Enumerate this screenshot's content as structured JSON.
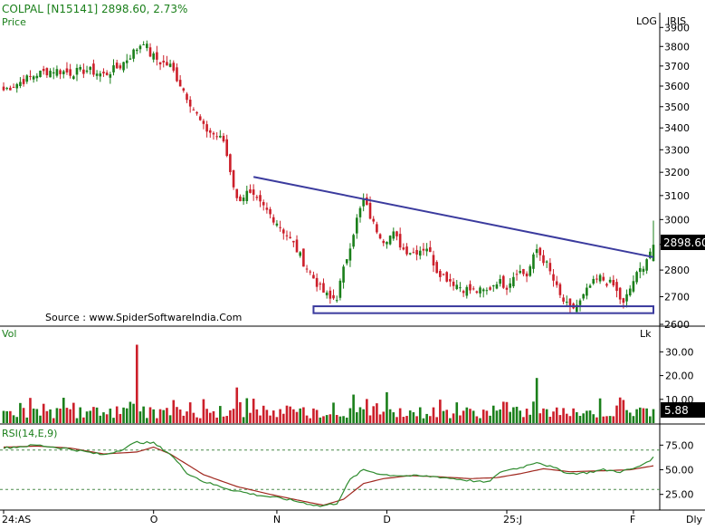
{
  "header": {
    "symbol": "COLPAL [N15141]",
    "last_price": "2898.60,",
    "change_pct": "2.73%",
    "price_label": "Price",
    "log_label": "LOG",
    "provider": "IRIS",
    "source": "Source : www.SpiderSoftwareIndia.Com"
  },
  "price_panel": {
    "y_axis_ticks": [
      "3900",
      "3800",
      "3700",
      "3600",
      "3500",
      "3400",
      "3300",
      "3200",
      "3100",
      "3000",
      "2900",
      "2800",
      "2700",
      "2600"
    ],
    "last_price_tag": "2898.60",
    "resistance_line": {
      "from": [
        75,
        3180
      ],
      "to": [
        195,
        2850
      ]
    },
    "support_zone": [
      2640,
      2665
    ]
  },
  "volume_panel": {
    "label": "Vol",
    "unit": "Lk",
    "y_axis_ticks": [
      "30.00",
      "20.00",
      "10.00"
    ],
    "last_volume_tag": "5.88"
  },
  "rsi_panel": {
    "label": "RSI(14,E,9)",
    "y_axis_ticks": [
      "75.00",
      "50.00",
      "25.00"
    ],
    "overbought": 70,
    "oversold": 30
  },
  "x_axis": {
    "labels": [
      "24:AS",
      "O",
      "N",
      "D",
      "25:J",
      "F"
    ],
    "label_positions": [
      0,
      45,
      82,
      115,
      151,
      189
    ],
    "period_label": "Dly"
  },
  "colors": {
    "up": "#1a7f1a",
    "down": "#cc1f2a",
    "trendline": "#3b3b9e",
    "rsi": "#2e8b2e",
    "rsi_signal": "#a0281f",
    "grid_dash": "#4a8a4a",
    "last_tag_bg": "#000000"
  },
  "chart_data": [
    {
      "type": "candlestick",
      "title": "COLPAL [N15141]",
      "ylabel": "Price",
      "scale": "log",
      "ylim": [
        2600,
        3950
      ],
      "x_index_range": [
        0,
        195
      ],
      "anchor_closes": [
        [
          0,
          3580
        ],
        [
          5,
          3620
        ],
        [
          10,
          3660
        ],
        [
          15,
          3680
        ],
        [
          20,
          3665
        ],
        [
          25,
          3680
        ],
        [
          30,
          3655
        ],
        [
          35,
          3700
        ],
        [
          40,
          3790
        ],
        [
          42,
          3830
        ],
        [
          44,
          3760
        ],
        [
          47,
          3720
        ],
        [
          50,
          3700
        ],
        [
          55,
          3550
        ],
        [
          60,
          3400
        ],
        [
          66,
          3340
        ],
        [
          70,
          3080
        ],
        [
          73,
          3110
        ],
        [
          78,
          3050
        ],
        [
          82,
          2990
        ],
        [
          87,
          2900
        ],
        [
          90,
          2830
        ],
        [
          95,
          2730
        ],
        [
          98,
          2690
        ],
        [
          100,
          2700
        ],
        [
          103,
          2850
        ],
        [
          106,
          3000
        ],
        [
          108,
          3080
        ],
        [
          111,
          2980
        ],
        [
          114,
          2920
        ],
        [
          117,
          2940
        ],
        [
          120,
          2880
        ],
        [
          123,
          2870
        ],
        [
          127,
          2890
        ],
        [
          130,
          2800
        ],
        [
          134,
          2760
        ],
        [
          138,
          2730
        ],
        [
          142,
          2720
        ],
        [
          145,
          2720
        ],
        [
          148,
          2760
        ],
        [
          151,
          2740
        ],
        [
          154,
          2800
        ],
        [
          157,
          2780
        ],
        [
          160,
          2880
        ],
        [
          163,
          2820
        ],
        [
          167,
          2700
        ],
        [
          170,
          2650
        ],
        [
          173,
          2680
        ],
        [
          176,
          2740
        ],
        [
          179,
          2770
        ],
        [
          183,
          2740
        ],
        [
          186,
          2670
        ],
        [
          189,
          2760
        ],
        [
          192,
          2820
        ],
        [
          195,
          2898.6
        ]
      ],
      "last_close": 2898.6
    },
    {
      "type": "bar",
      "title": "Vol",
      "ylabel": "Lk",
      "ylim": [
        0,
        37
      ],
      "spikes": [
        [
          40,
          33
        ],
        [
          115,
          13
        ],
        [
          160,
          19
        ],
        [
          42,
          7
        ],
        [
          70,
          15
        ],
        [
          105,
          12
        ],
        [
          150,
          9
        ]
      ],
      "last_value": 5.88
    },
    {
      "type": "line",
      "title": "RSI(14,E,9)",
      "ylim": [
        10,
        90
      ],
      "series": [
        {
          "anchors": [
            [
              0,
              72
            ],
            [
              10,
              75
            ],
            [
              20,
              71
            ],
            [
              30,
              65
            ],
            [
              35,
              70
            ],
            [
              40,
              78
            ],
            [
              45,
              77
            ],
            [
              50,
              66
            ],
            [
              55,
              47
            ],
            [
              60,
              38
            ],
            [
              68,
              30
            ],
            [
              75,
              25
            ],
            [
              85,
              20
            ],
            [
              95,
              13
            ],
            [
              100,
              16
            ],
            [
              104,
              40
            ],
            [
              108,
              50
            ],
            [
              114,
              45
            ],
            [
              120,
              44
            ],
            [
              130,
              43
            ],
            [
              140,
              39
            ],
            [
              145,
              37
            ],
            [
              150,
              49
            ],
            [
              155,
              52
            ],
            [
              160,
              58
            ],
            [
              165,
              52
            ],
            [
              170,
              46
            ],
            [
              175,
              47
            ],
            [
              180,
              50
            ],
            [
              185,
              48
            ],
            [
              190,
              52
            ],
            [
              195,
              62
            ]
          ]
        },
        {
          "anchors": [
            [
              0,
              73
            ],
            [
              10,
              74
            ],
            [
              20,
              72
            ],
            [
              30,
              66
            ],
            [
              40,
              68
            ],
            [
              45,
              73
            ],
            [
              50,
              66
            ],
            [
              60,
              45
            ],
            [
              70,
              33
            ],
            [
              80,
              25
            ],
            [
              90,
              18
            ],
            [
              96,
              14
            ],
            [
              102,
              20
            ],
            [
              108,
              36
            ],
            [
              114,
              41
            ],
            [
              122,
              44
            ],
            [
              130,
              43
            ],
            [
              140,
              41
            ],
            [
              148,
              42
            ],
            [
              155,
              46
            ],
            [
              162,
              51
            ],
            [
              170,
              48
            ],
            [
              180,
              49
            ],
            [
              188,
              50
            ],
            [
              195,
              54
            ]
          ]
        }
      ],
      "reference_lines": [
        70,
        30
      ]
    }
  ]
}
